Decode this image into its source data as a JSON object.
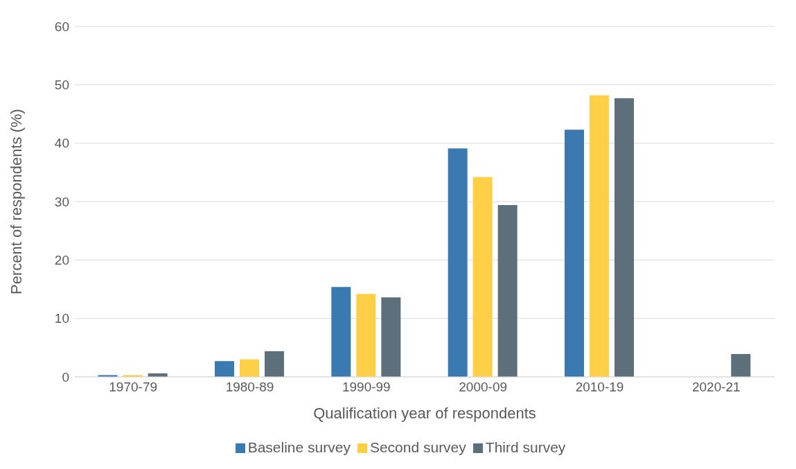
{
  "chart_data": {
    "type": "bar",
    "xlabel": "Qualification year of respondents",
    "ylabel": "Percent of respondents (%)",
    "categories": [
      "1970-79",
      "1980-89",
      "1990-99",
      "2000-09",
      "2010-19",
      "2020-21"
    ],
    "series": [
      {
        "name": "Baseline survey",
        "color": "#3a7ab0",
        "values": [
          0.3,
          2.7,
          15.4,
          39.1,
          42.3,
          null
        ]
      },
      {
        "name": "Second survey",
        "color": "#ffcf48",
        "values": [
          0.3,
          3.0,
          14.2,
          34.2,
          48.2,
          null
        ]
      },
      {
        "name": "Third survey",
        "color": "#5c6f7a",
        "values": [
          0.6,
          4.4,
          13.6,
          29.4,
          47.7,
          3.9
        ]
      }
    ],
    "ylim": [
      0,
      60
    ],
    "yticks": [
      0,
      10,
      20,
      30,
      40,
      50,
      60
    ],
    "grid": "y",
    "legend": "bottom"
  }
}
